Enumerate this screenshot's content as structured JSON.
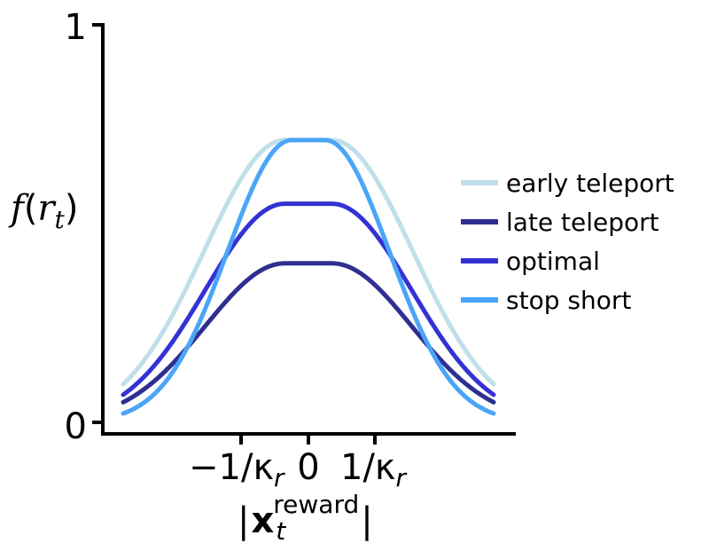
{
  "chart_data": {
    "type": "line",
    "ylabel": "f(r_t)",
    "xlabel": "|x_t^reward|",
    "ylim": [
      0,
      1
    ],
    "xlim": [
      -2.75,
      2.75
    ],
    "y_ticks": [
      "0",
      "1"
    ],
    "x_ticks": [
      {
        "value": -1,
        "label": "−1/κr"
      },
      {
        "value": 0,
        "label": "0"
      },
      {
        "value": 1,
        "label": "1/κr"
      }
    ],
    "x_tick_text": {
      "minus_inv": "−1/κ",
      "sub_r1": "r",
      "zero": "0",
      "inv": "1/κ",
      "sub_r2": "r"
    },
    "ylabel_parts": {
      "f": "f",
      "open": "(",
      "r": "r",
      "t": "t",
      "close": ")"
    },
    "xlabel_parts": {
      "bar1": "|",
      "x": "x",
      "t": "t",
      "sup": "reward",
      "bar2": "|"
    },
    "legend_position": "right",
    "grid": false,
    "series": [
      {
        "name": "early teleport",
        "color": "#BFDFEA",
        "peak": 0.71,
        "width": 1.2,
        "plateau": 0.35
      },
      {
        "name": "late teleport",
        "color": "#2E2F91",
        "peak": 0.4,
        "width": 1.18,
        "plateau": 0.35
      },
      {
        "name": "optimal",
        "color": "#3432D4",
        "peak": 0.55,
        "width": 1.18,
        "plateau": 0.35
      },
      {
        "name": "stop short",
        "color": "#4AA5F7",
        "peak": 0.71,
        "width": 0.95,
        "plateau": 0.25
      }
    ]
  }
}
